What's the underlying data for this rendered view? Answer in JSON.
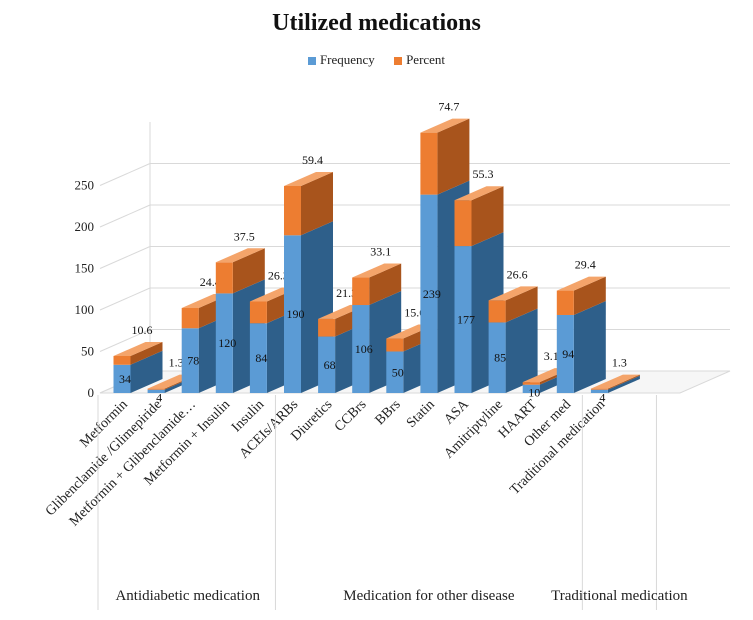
{
  "chart_data": {
    "type": "bar",
    "stacked": true,
    "title": "Utilized medications",
    "categories": [
      "Metformin",
      "Glibenclamide /Glimepiride",
      "Metformin + Glibenclamide…",
      "Metformin + Insulin",
      "Insulin",
      "ACEIs/ARBs",
      "Diuretics",
      "CCBrs",
      "BBrs",
      "Statin",
      "ASA",
      "Amitriptyline",
      "HAART",
      "Other med",
      "Traditional medication"
    ],
    "groups": [
      {
        "label": "Antidiabetic medication",
        "start": 0,
        "end": 4
      },
      {
        "label": "Medication for other disease",
        "start": 5,
        "end": 13
      },
      {
        "label": "Traditional medication",
        "start": 14,
        "end": 14
      }
    ],
    "series": [
      {
        "name": "Frequency",
        "values": [
          34,
          4,
          78,
          120,
          84,
          190,
          68,
          106,
          50,
          239,
          177,
          85,
          10,
          94,
          4
        ]
      },
      {
        "name": "Percent",
        "values": [
          10.6,
          1.3,
          24.4,
          37.5,
          26.3,
          59.4,
          21.3,
          33.1,
          15.6,
          74.7,
          55.3,
          26.6,
          3.1,
          29.4,
          1.3
        ]
      }
    ],
    "yticks": [
      0,
      50,
      100,
      150,
      200,
      250
    ],
    "ylim": [
      0,
      300
    ],
    "legend_position": "top-center",
    "grid": true
  },
  "colors": {
    "frequency": "#5B9BD5",
    "frequency_side": "#2E5F8A",
    "frequency_top": "#8CB8E3",
    "percent": "#ED7D31",
    "percent_side": "#A8541C",
    "percent_top": "#F4A46A",
    "grid": "#d9d9d9",
    "text": "#222222"
  }
}
